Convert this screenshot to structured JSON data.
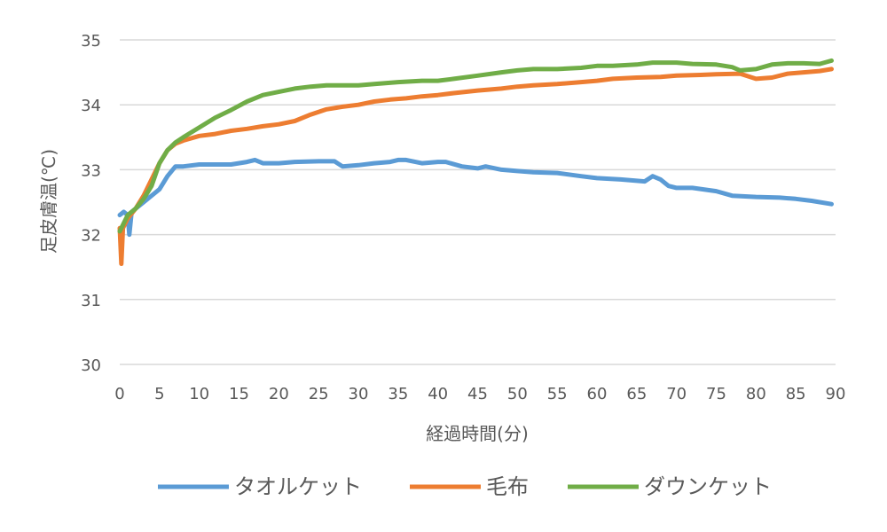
{
  "chart_data": {
    "type": "line",
    "xlabel": "経過時間(分)",
    "ylabel": "足皮膚温(℃)",
    "xlim": [
      0,
      90
    ],
    "ylim": [
      30,
      35
    ],
    "xticks": [
      "0",
      "5",
      "10",
      "15",
      "20",
      "25",
      "30",
      "35",
      "40",
      "45",
      "50",
      "55",
      "60",
      "65",
      "70",
      "75",
      "80",
      "85",
      "90"
    ],
    "yticks": [
      "30",
      "31",
      "32",
      "33",
      "34",
      "35"
    ],
    "grid": "horizontal",
    "legend": "bottom",
    "series": [
      {
        "name": "タオルケット",
        "color": "#5b9bd5",
        "points": [
          [
            0,
            32.3
          ],
          [
            0.5,
            32.35
          ],
          [
            1,
            32.3
          ],
          [
            1.2,
            32.0
          ],
          [
            1.5,
            32.35
          ],
          [
            2,
            32.4
          ],
          [
            3,
            32.5
          ],
          [
            4,
            32.6
          ],
          [
            5,
            32.7
          ],
          [
            6,
            32.9
          ],
          [
            7,
            33.05
          ],
          [
            8,
            33.05
          ],
          [
            10,
            33.08
          ],
          [
            12,
            33.08
          ],
          [
            14,
            33.08
          ],
          [
            16,
            33.12
          ],
          [
            17,
            33.15
          ],
          [
            18,
            33.1
          ],
          [
            20,
            33.1
          ],
          [
            22,
            33.12
          ],
          [
            25,
            33.13
          ],
          [
            27,
            33.13
          ],
          [
            28,
            33.05
          ],
          [
            30,
            33.07
          ],
          [
            32,
            33.1
          ],
          [
            34,
            33.12
          ],
          [
            35,
            33.15
          ],
          [
            36,
            33.15
          ],
          [
            38,
            33.1
          ],
          [
            40,
            33.12
          ],
          [
            41,
            33.12
          ],
          [
            43,
            33.05
          ],
          [
            45,
            33.02
          ],
          [
            46,
            33.05
          ],
          [
            48,
            33.0
          ],
          [
            50,
            32.98
          ],
          [
            52,
            32.96
          ],
          [
            55,
            32.95
          ],
          [
            58,
            32.9
          ],
          [
            60,
            32.87
          ],
          [
            63,
            32.85
          ],
          [
            66,
            32.82
          ],
          [
            67,
            32.9
          ],
          [
            68,
            32.85
          ],
          [
            69,
            32.75
          ],
          [
            70,
            32.72
          ],
          [
            72,
            32.72
          ],
          [
            75,
            32.67
          ],
          [
            77,
            32.6
          ],
          [
            80,
            32.58
          ],
          [
            83,
            32.57
          ],
          [
            85,
            32.55
          ],
          [
            87,
            32.52
          ],
          [
            89.5,
            32.47
          ]
        ]
      },
      {
        "name": "毛布",
        "color": "#ed7d31",
        "points": [
          [
            0,
            32.1
          ],
          [
            0.2,
            31.55
          ],
          [
            0.4,
            32.1
          ],
          [
            1,
            32.25
          ],
          [
            2,
            32.4
          ],
          [
            3,
            32.6
          ],
          [
            4,
            32.85
          ],
          [
            5,
            33.1
          ],
          [
            6,
            33.3
          ],
          [
            7,
            33.4
          ],
          [
            8,
            33.45
          ],
          [
            10,
            33.52
          ],
          [
            12,
            33.55
          ],
          [
            14,
            33.6
          ],
          [
            16,
            33.63
          ],
          [
            18,
            33.67
          ],
          [
            20,
            33.7
          ],
          [
            22,
            33.75
          ],
          [
            24,
            33.85
          ],
          [
            26,
            33.93
          ],
          [
            28,
            33.97
          ],
          [
            30,
            34.0
          ],
          [
            32,
            34.05
          ],
          [
            34,
            34.08
          ],
          [
            36,
            34.1
          ],
          [
            38,
            34.13
          ],
          [
            40,
            34.15
          ],
          [
            42,
            34.18
          ],
          [
            45,
            34.22
          ],
          [
            48,
            34.25
          ],
          [
            50,
            34.28
          ],
          [
            52,
            34.3
          ],
          [
            55,
            34.32
          ],
          [
            58,
            34.35
          ],
          [
            60,
            34.37
          ],
          [
            62,
            34.4
          ],
          [
            65,
            34.42
          ],
          [
            68,
            34.43
          ],
          [
            70,
            34.45
          ],
          [
            73,
            34.46
          ],
          [
            75,
            34.47
          ],
          [
            78,
            34.48
          ],
          [
            80,
            34.4
          ],
          [
            82,
            34.42
          ],
          [
            84,
            34.48
          ],
          [
            86,
            34.5
          ],
          [
            88,
            34.52
          ],
          [
            89.5,
            34.55
          ]
        ]
      },
      {
        "name": "ダウンケット",
        "color": "#70ad47",
        "points": [
          [
            0,
            32.05
          ],
          [
            1,
            32.3
          ],
          [
            2,
            32.4
          ],
          [
            3,
            32.55
          ],
          [
            4,
            32.75
          ],
          [
            5,
            33.1
          ],
          [
            6,
            33.3
          ],
          [
            7,
            33.42
          ],
          [
            8,
            33.5
          ],
          [
            10,
            33.65
          ],
          [
            12,
            33.8
          ],
          [
            14,
            33.92
          ],
          [
            16,
            34.05
          ],
          [
            18,
            34.15
          ],
          [
            20,
            34.2
          ],
          [
            22,
            34.25
          ],
          [
            24,
            34.28
          ],
          [
            26,
            34.3
          ],
          [
            28,
            34.3
          ],
          [
            30,
            34.3
          ],
          [
            32,
            34.32
          ],
          [
            35,
            34.35
          ],
          [
            38,
            34.37
          ],
          [
            40,
            34.37
          ],
          [
            42,
            34.4
          ],
          [
            45,
            34.45
          ],
          [
            48,
            34.5
          ],
          [
            50,
            34.53
          ],
          [
            52,
            34.55
          ],
          [
            55,
            34.55
          ],
          [
            58,
            34.57
          ],
          [
            60,
            34.6
          ],
          [
            62,
            34.6
          ],
          [
            65,
            34.62
          ],
          [
            67,
            34.65
          ],
          [
            70,
            34.65
          ],
          [
            72,
            34.63
          ],
          [
            75,
            34.62
          ],
          [
            77,
            34.58
          ],
          [
            78,
            34.53
          ],
          [
            80,
            34.55
          ],
          [
            82,
            34.62
          ],
          [
            84,
            34.64
          ],
          [
            86,
            34.64
          ],
          [
            88,
            34.63
          ],
          [
            89.5,
            34.68
          ]
        ]
      }
    ]
  }
}
